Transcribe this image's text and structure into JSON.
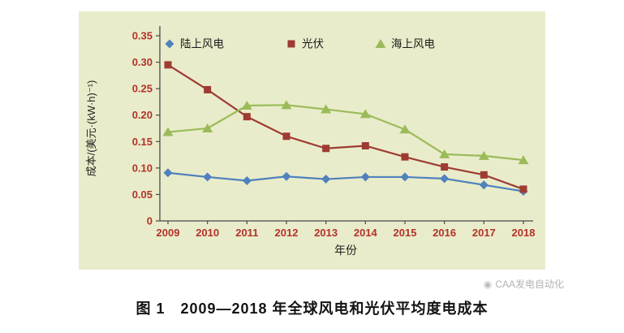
{
  "figure": {
    "caption": "图 1　2009—2018 年全球风电和光伏平均度电成本",
    "watermark": "CAA发电自动化"
  },
  "chart_data": {
    "type": "line",
    "title": "",
    "xlabel": "年份",
    "ylabel": "成本/(美元·(kW·h)⁻¹)",
    "categories": [
      "2009",
      "2010",
      "2011",
      "2012",
      "2013",
      "2014",
      "2015",
      "2016",
      "2017",
      "2018"
    ],
    "ylim": [
      0,
      0.35
    ],
    "ytick_step": 0.05,
    "yticks": [
      "0",
      "0.05",
      "0.10",
      "0.15",
      "0.20",
      "0.25",
      "0.30",
      "0.35"
    ],
    "grid": false,
    "legend_position": "top-inside",
    "series": [
      {
        "key": "onshore-wind",
        "name": "陆上风电",
        "marker": "diamond",
        "color": "#4f81bd",
        "values": [
          0.091,
          0.083,
          0.076,
          0.084,
          0.079,
          0.083,
          0.083,
          0.08,
          0.068,
          0.056
        ]
      },
      {
        "key": "solar-pv",
        "name": "光伏",
        "marker": "square",
        "color": "#9e3b33",
        "values": [
          0.295,
          0.248,
          0.197,
          0.16,
          0.137,
          0.142,
          0.121,
          0.102,
          0.087,
          0.06
        ]
      },
      {
        "key": "offshore-wind",
        "name": "海上风电",
        "marker": "triangle",
        "color": "#9bbb59",
        "values": [
          0.168,
          0.175,
          0.218,
          0.219,
          0.211,
          0.202,
          0.173,
          0.126,
          0.123,
          0.115
        ]
      }
    ]
  },
  "colors": {
    "panel_bg": "#e9ecca",
    "axis": "#4a4a4a",
    "tick_label": "#b23229",
    "axis_title": "#222222",
    "legend_text": "#1a1a1a"
  }
}
